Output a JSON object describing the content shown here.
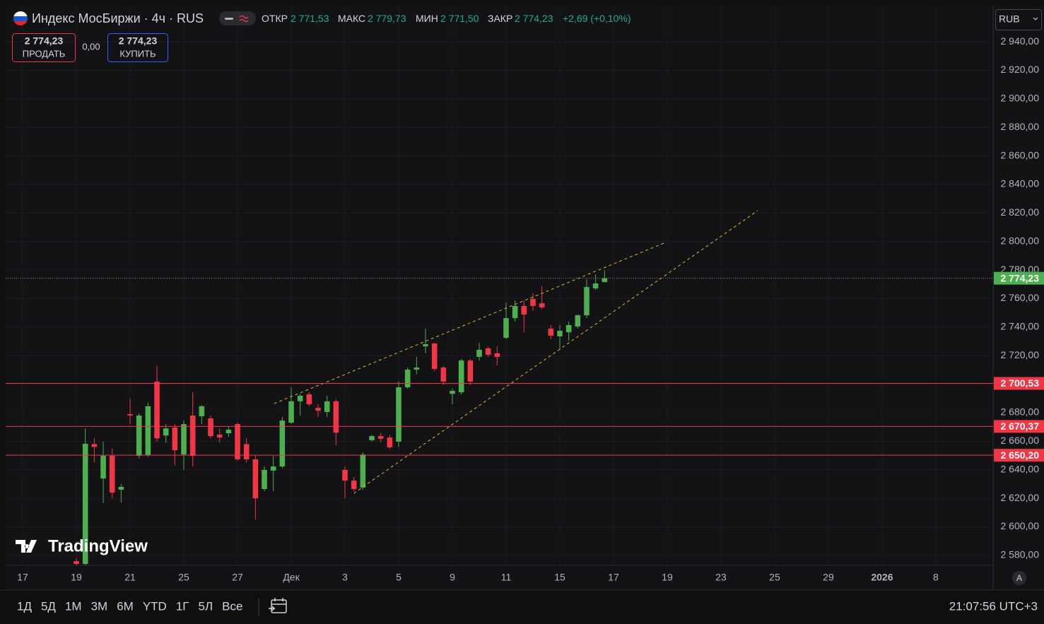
{
  "header": {
    "title": "Индекс МосБиржи · 4ч · RUS",
    "open_label": "ОТКР",
    "open": "2 771,53",
    "high_label": "МАКС",
    "high": "2 779,73",
    "low_label": "МИН",
    "low": "2 771,50",
    "close_label": "ЗАКР",
    "close": "2 774,23",
    "change": "+2,69 (+0,10%)",
    "currency": "RUB"
  },
  "trading": {
    "sell_price": "2 774,23",
    "sell_label": "ПРОДАТЬ",
    "spread": "0,00",
    "buy_price": "2 774,23",
    "buy_label": "КУПИТЬ"
  },
  "toolbar": {
    "ranges": [
      "1Д",
      "5Д",
      "1М",
      "3М",
      "6М",
      "YTD",
      "1Г",
      "5Л",
      "Все"
    ],
    "time": "21:07:56 UTC+3",
    "logo": "TradingView",
    "auto": "A"
  },
  "chart_data": {
    "type": "candlestick",
    "up_color": "#4caf50",
    "down_color": "#f23645",
    "grid": true,
    "open": [
      2576,
      2574,
      2658,
      2633.9,
      2649.8,
      2626,
      2679,
      2649.8,
      2650,
      2701.8,
      2664,
      2669.6,
      2650.7,
      2678,
      2677.5,
      2676,
      2664.6,
      2665.6,
      2672,
      2658,
      2647.3,
      2626.5,
      2639.4,
      2642.3,
      2673,
      2688,
      2692.9,
      2683.4,
      2680.5,
      2688,
      2639.9,
      2632.4,
      2627.5,
      2660.7,
      2663.6,
      2662.6,
      2659.7,
      2697.8,
      2710.2,
      2726.5,
      2728.5,
      2711.7,
      2693.3,
      2694.3,
      2716.6,
      2719.1,
      2725.1,
      2721.6,
      2732.5,
      2746.3,
      2754.8,
      2759.7,
      2756.7,
      2738.9,
      2733.5,
      2736.4,
      2740.4,
      2748.3,
      2767.1,
      2771.53
    ],
    "high": [
      2578,
      2669.1,
      2662,
      2659.7,
      2654.7,
      2630,
      2690,
      2679.5,
      2687,
      2712.7,
      2672,
      2672,
      2674.5,
      2694.3,
      2685.4,
      2678,
      2669,
      2670,
      2673,
      2662,
      2649.8,
      2642.3,
      2649.8,
      2677,
      2697.8,
      2693.3,
      2694.3,
      2686,
      2691.9,
      2689.4,
      2642.3,
      2634.9,
      2652.2,
      2664.6,
      2666,
      2664.6,
      2701.8,
      2711.7,
      2719.1,
      2738.9,
      2729,
      2712.7,
      2696.8,
      2717.6,
      2717.6,
      2729,
      2726.5,
      2726.5,
      2757.2,
      2758.7,
      2758.7,
      2763.7,
      2768.6,
      2741.4,
      2741.4,
      2743.9,
      2748.8,
      2773.6,
      2777,
      2779.73
    ],
    "low": [
      2573,
      2570,
      2645,
      2616.6,
      2620,
      2617,
      2672,
      2648,
      2649,
      2659.7,
      2659,
      2643,
      2639.9,
      2642.3,
      2672,
      2662,
      2659,
      2663,
      2646.3,
      2645,
      2605.2,
      2625,
      2625,
      2641,
      2672,
      2678,
      2684.5,
      2677,
      2677,
      2657.2,
      2620,
      2625,
      2626,
      2659.7,
      2659,
      2654.7,
      2656,
      2696.8,
      2707,
      2721.6,
      2709.2,
      2699.3,
      2685.9,
      2692.9,
      2699.3,
      2716.6,
      2719.1,
      2713.2,
      2731.5,
      2743.9,
      2736.4,
      2751.3,
      2752.8,
      2731.5,
      2724.1,
      2730.5,
      2739,
      2746.3,
      2766.1,
      2771.5
    ],
    "close": [
      2574,
      2658.2,
      2656,
      2649.8,
      2624,
      2628,
      2678,
      2678,
      2684.5,
      2662,
      2669,
      2653.7,
      2672,
      2649.8,
      2684.5,
      2663.6,
      2662.6,
      2668.1,
      2647.3,
      2647.3,
      2620,
      2639.9,
      2642.3,
      2674.5,
      2688,
      2691.9,
      2685.9,
      2681.4,
      2688,
      2666,
      2632.4,
      2626.5,
      2650.7,
      2663.6,
      2661.7,
      2655.7,
      2697.8,
      2710.2,
      2711.7,
      2728,
      2710.7,
      2701.8,
      2695.3,
      2716.6,
      2701.8,
      2724.1,
      2720.6,
      2719.1,
      2746.3,
      2754.8,
      2748.8,
      2754.8,
      2753.8,
      2734,
      2737.4,
      2741.4,
      2748.3,
      2768.1,
      2770.6,
      2774.23
    ],
    "xlim": [
      -7.9,
      102.4
    ],
    "xticks": [
      {
        "value": -6,
        "label": "17"
      },
      {
        "value": 0,
        "label": "19"
      },
      {
        "value": 6,
        "label": "21"
      },
      {
        "value": 12,
        "label": "25"
      },
      {
        "value": 18,
        "label": "27"
      },
      {
        "value": 24,
        "label": "Дек"
      },
      {
        "value": 30,
        "label": "3"
      },
      {
        "value": 36,
        "label": "5"
      },
      {
        "value": 42,
        "label": "9"
      },
      {
        "value": 48,
        "label": "11"
      },
      {
        "value": 54,
        "label": "15"
      },
      {
        "value": 60,
        "label": "17"
      },
      {
        "value": 66,
        "label": "19"
      },
      {
        "value": 72,
        "label": "23"
      },
      {
        "value": 78,
        "label": "25"
      },
      {
        "value": 84,
        "label": "29"
      },
      {
        "value": 90,
        "label": "2026"
      },
      {
        "value": 96,
        "label": "8"
      }
    ],
    "ylim": [
      2573,
      2965.3
    ],
    "yticks": [
      {
        "value": 2580,
        "label": "2 580,00"
      },
      {
        "value": 2600,
        "label": "2 600,00"
      },
      {
        "value": 2620,
        "label": "2 620,00"
      },
      {
        "value": 2640,
        "label": "2 640,00"
      },
      {
        "value": 2660,
        "label": "2 660,00"
      },
      {
        "value": 2680,
        "label": "2 680,00"
      },
      {
        "value": 2700,
        "label": "2 700,00"
      },
      {
        "value": 2720,
        "label": "2 720,00"
      },
      {
        "value": 2740,
        "label": "2 740,00"
      },
      {
        "value": 2760,
        "label": "2 760,00"
      },
      {
        "value": 2780,
        "label": "2 780,00"
      },
      {
        "value": 2800,
        "label": "2 800,00"
      },
      {
        "value": 2820,
        "label": "2 820,00"
      },
      {
        "value": 2840,
        "label": "2 840,00"
      },
      {
        "value": 2860,
        "label": "2 860,00"
      },
      {
        "value": 2880,
        "label": "2 880,00"
      },
      {
        "value": 2900,
        "label": "2 900,00"
      },
      {
        "value": 2920,
        "label": "2 920,00"
      },
      {
        "value": 2940,
        "label": "2 940,00"
      }
    ],
    "levels": [
      {
        "value": 2700.53,
        "label": "2 700,53",
        "color": "#f23645"
      },
      {
        "value": 2670.37,
        "label": "2 670,37",
        "color": "#f23645"
      },
      {
        "value": 2650.2,
        "label": "2 650,20",
        "color": "#f23645"
      }
    ],
    "last": {
      "value": 2774.23,
      "label": "2 774,23",
      "color": "#4caf50"
    },
    "trendlines": [
      {
        "x": [
          22.1,
          65.8
        ],
        "y": [
          2686.4,
          2799.3
        ],
        "color": "#e5b532"
      },
      {
        "x": [
          31,
          76.1
        ],
        "y": [
          2623.5,
          2821.6
        ],
        "color": "#e5b532"
      }
    ]
  }
}
